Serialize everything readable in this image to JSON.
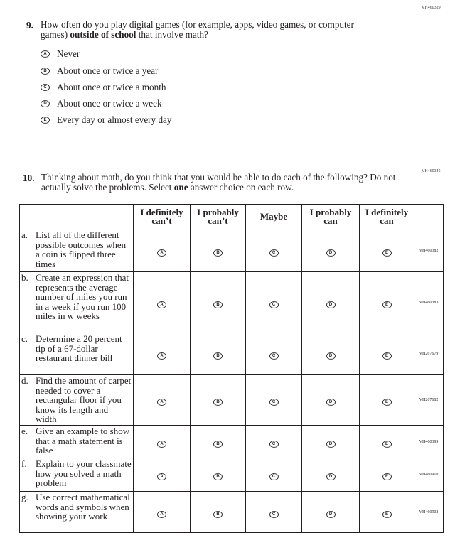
{
  "q9": {
    "id": "VH460329",
    "number": "9.",
    "text_a": "How often do you play digital games (for example, apps, video games, or computer games) ",
    "text_bold": "outside of school",
    "text_b": " that involve math?",
    "options": [
      {
        "letter": "A",
        "label": "Never"
      },
      {
        "letter": "B",
        "label": "About once or twice a year"
      },
      {
        "letter": "C",
        "label": "About once or twice a month"
      },
      {
        "letter": "D",
        "label": "About once or twice a week"
      },
      {
        "letter": "E",
        "label": "Every day or almost every day"
      }
    ]
  },
  "q10": {
    "id": "VH460345",
    "number": "10.",
    "text_a": "Thinking about math, do you think that you would be able to do each of the following? Do not actually solve the problems. Select ",
    "text_bold": "one",
    "text_b": " answer choice on each row.",
    "columns": [
      "I definitely can’t",
      "I probably can’t",
      "Maybe",
      "I probably can",
      "I definitely can"
    ],
    "bubble_letters": [
      "A",
      "B",
      "C",
      "D",
      "E"
    ],
    "rows": [
      {
        "letter": "a.",
        "text": "List all of the different possible outcomes when a coin is flipped three times",
        "id": "VH460382"
      },
      {
        "letter": "b.",
        "text": "Create an expression that represents the average number of miles you run in a week if you run 100 miles in w weeks",
        "id": "VH460383"
      },
      {
        "letter": "c.",
        "text": "Determine a 20 percent tip of a 67-dollar restaurant dinner bill",
        "id": "VH267679"
      },
      {
        "letter": "d.",
        "text": "Find the amount of carpet needed to cover a rectangular floor if you know its length and width",
        "id": "VH267682"
      },
      {
        "letter": "e.",
        "text": "Give an example to show that a math statement is false",
        "id": "VH460399"
      },
      {
        "letter": "f.",
        "text": "Explain to your classmate how you solved a math problem",
        "id": "VH460910"
      },
      {
        "letter": "g.",
        "text": "Use correct mathematical words and symbols when showing your work",
        "id": "VH460902"
      }
    ]
  }
}
